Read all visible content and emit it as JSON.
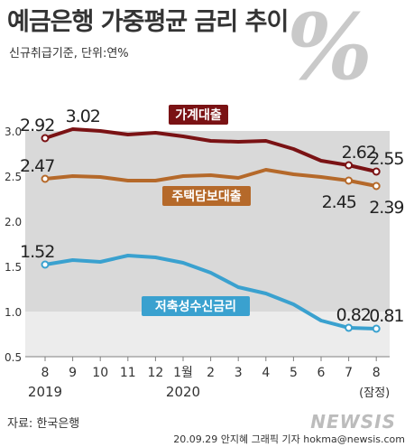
{
  "header": {
    "title": "예금은행 가중평균 금리 추이",
    "subtitle": "신규취급기준, 단위:연%"
  },
  "decoration": {
    "percent_glyph": "%",
    "logo_text": "NEWSIS"
  },
  "footer": {
    "source": "자료: 한국은행",
    "credit": "20.09.29 안지혜 그래픽 기자 hokma@newsis.com"
  },
  "chart_data": {
    "type": "line",
    "categories": [
      "8",
      "9",
      "10",
      "11",
      "12",
      "1월",
      "2",
      "3",
      "4",
      "5",
      "6",
      "7",
      "8"
    ],
    "year_labels": [
      {
        "index": 0,
        "label": "2019"
      },
      {
        "index": 5,
        "label": "2020"
      }
    ],
    "last_point_note": "(잠정)",
    "ylim": [
      0.5,
      3.0
    ],
    "yticks": [
      "3.0",
      "2.5",
      "2.0",
      "1.5",
      "1.0",
      "0.5"
    ],
    "grid": false,
    "series": [
      {
        "name": "가계대출",
        "color": "#7a1214",
        "values": [
          2.92,
          3.02,
          3.0,
          2.96,
          2.98,
          2.94,
          2.89,
          2.88,
          2.89,
          2.8,
          2.67,
          2.62,
          2.55
        ],
        "labeled": [
          {
            "index": 0,
            "text": "2.92"
          },
          {
            "index": 1,
            "text": "3.02"
          },
          {
            "index": 11,
            "text": "2.62"
          },
          {
            "index": 12,
            "text": "2.55"
          }
        ]
      },
      {
        "name": "주택담보대출",
        "color": "#b5692a",
        "values": [
          2.47,
          2.5,
          2.49,
          2.45,
          2.45,
          2.5,
          2.51,
          2.48,
          2.57,
          2.52,
          2.49,
          2.45,
          2.39
        ],
        "labeled": [
          {
            "index": 0,
            "text": "2.47"
          },
          {
            "index": 11,
            "text": "2.45"
          },
          {
            "index": 12,
            "text": "2.39"
          }
        ]
      },
      {
        "name": "저축성수신금리",
        "color": "#3aa1cf",
        "values": [
          1.52,
          1.57,
          1.55,
          1.62,
          1.6,
          1.54,
          1.43,
          1.27,
          1.2,
          1.08,
          0.9,
          0.82,
          0.81
        ],
        "labeled": [
          {
            "index": 0,
            "text": "1.52"
          },
          {
            "index": 11,
            "text": "0.82"
          },
          {
            "index": 12,
            "text": "0.81"
          }
        ]
      }
    ],
    "colors": {
      "band_dark": "#d9d9d9",
      "band_light": "#ececec",
      "axis": "#7f7f7f",
      "text": "#333333"
    }
  }
}
